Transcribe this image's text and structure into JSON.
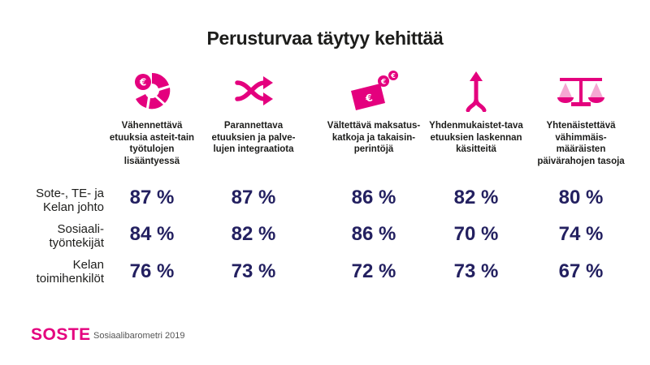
{
  "title": "Perusturvaa täytyy kehittää",
  "colors": {
    "accent": "#e4007e",
    "values": "#232060",
    "text": "#1d1d1b"
  },
  "chart_data": {
    "type": "table",
    "columns": [
      {
        "label": "Vähennettävä etuuksia asteit-tain työtulojen lisääntyessä",
        "icon": "pie-euro-icon"
      },
      {
        "label": "Parannettava etuuksien ja palve-lujen integraatiota",
        "icon": "shuffle-arrows-icon"
      },
      {
        "label": "Vältettävä maksatus-katkoja ja takaisin-perintöjä",
        "icon": "banknote-euro-icon"
      },
      {
        "label": "Yhdenmukaistet-tava etuuksien laskennan käsitteitä",
        "icon": "merge-arrows-icon"
      },
      {
        "label": "Yhtenäistettävä vähimmäis-määräisten päivärahojen tasoja",
        "icon": "scales-icon"
      }
    ],
    "rows": [
      {
        "label": "Sote-, TE- ja Kelan johto",
        "values": [
          "87 %",
          "87 %",
          "86 %",
          "82 %",
          "80 %"
        ]
      },
      {
        "label": "Sosiaali-työntekijät",
        "values": [
          "84 %",
          "82 %",
          "86 %",
          "70 %",
          "74 %"
        ]
      },
      {
        "label": "Kelan toimihenkilöt",
        "values": [
          "76 %",
          "73 %",
          "72 %",
          "73 %",
          "67 %"
        ]
      }
    ]
  },
  "footer": {
    "logo": "SOSTE",
    "source": "Sosiaalibarometri 2019"
  }
}
